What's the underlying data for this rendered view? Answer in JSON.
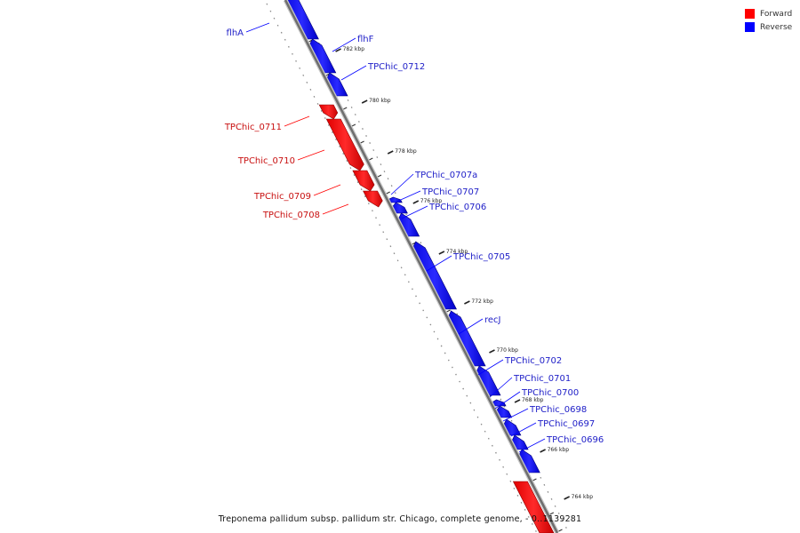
{
  "legend": {
    "forward": {
      "label": "Forward",
      "color": "#ff0000"
    },
    "reverse": {
      "label": "Reverse",
      "color": "#0000ff"
    }
  },
  "caption": "Treponema pallidum subsp. pallidum str. Chicago, complete genome, - 0..1139281",
  "ticks": [
    "782 kbp",
    "780 kbp",
    "778 kbp",
    "776 kbp",
    "774 kbp",
    "772 kbp",
    "770 kbp",
    "768 kbp",
    "766 kbp",
    "764 kbp"
  ],
  "genes": [
    {
      "name": "flhA",
      "strand": "reverse"
    },
    {
      "name": "flhF",
      "strand": "reverse"
    },
    {
      "name": "TPChic_0712",
      "strand": "reverse"
    },
    {
      "name": "TPChic_0711",
      "strand": "forward"
    },
    {
      "name": "TPChic_0710",
      "strand": "forward"
    },
    {
      "name": "TPChic_0709",
      "strand": "forward"
    },
    {
      "name": "TPChic_0708",
      "strand": "forward"
    },
    {
      "name": "TPChic_0707a",
      "strand": "reverse"
    },
    {
      "name": "TPChic_0707",
      "strand": "reverse"
    },
    {
      "name": "TPChic_0706",
      "strand": "reverse"
    },
    {
      "name": "TPChic_0705",
      "strand": "reverse"
    },
    {
      "name": "recJ",
      "strand": "reverse"
    },
    {
      "name": "TPChic_0702",
      "strand": "reverse"
    },
    {
      "name": "TPChic_0701",
      "strand": "reverse"
    },
    {
      "name": "TPChic_0700",
      "strand": "reverse"
    },
    {
      "name": "TPChic_0698",
      "strand": "reverse"
    },
    {
      "name": "TPChic_0697",
      "strand": "reverse"
    },
    {
      "name": "TPChic_0696",
      "strand": "reverse"
    }
  ]
}
